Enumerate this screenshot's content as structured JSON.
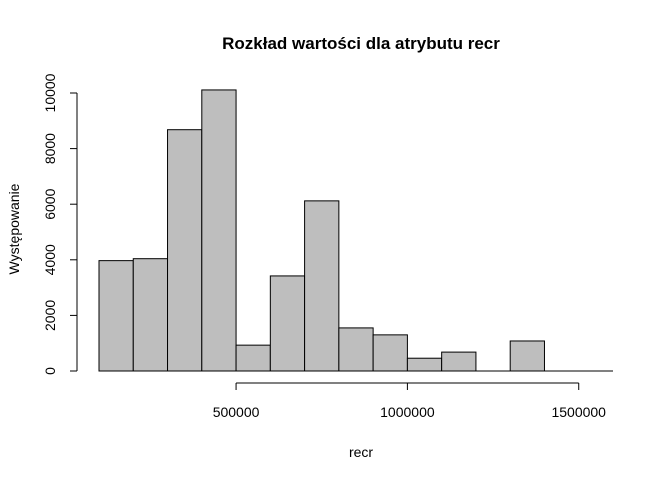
{
  "chart_data": {
    "type": "bar",
    "title": "Rozkład wartości dla atrybutu recr",
    "xlabel": "recr",
    "ylabel": "Występowanie",
    "x_ticks": [
      "500000",
      "1000000",
      "1500000"
    ],
    "y_ticks": [
      "0",
      "2000",
      "4000",
      "6000",
      "8000",
      "10000"
    ],
    "xlim": [
      100000,
      1600000
    ],
    "ylim": [
      0,
      10000
    ],
    "bin_edges": [
      100000,
      200000,
      300000,
      400000,
      500000,
      600000,
      700000,
      800000,
      900000,
      1000000,
      1100000,
      1200000,
      1300000,
      1400000,
      1500000,
      1600000
    ],
    "values": [
      3970,
      4040,
      8680,
      10110,
      930,
      3420,
      6120,
      1550,
      1300,
      460,
      680,
      0,
      1080,
      0,
      0
    ],
    "grid": false,
    "colors": {
      "bar_fill": "#bebebe",
      "bar_stroke": "#000000"
    }
  }
}
